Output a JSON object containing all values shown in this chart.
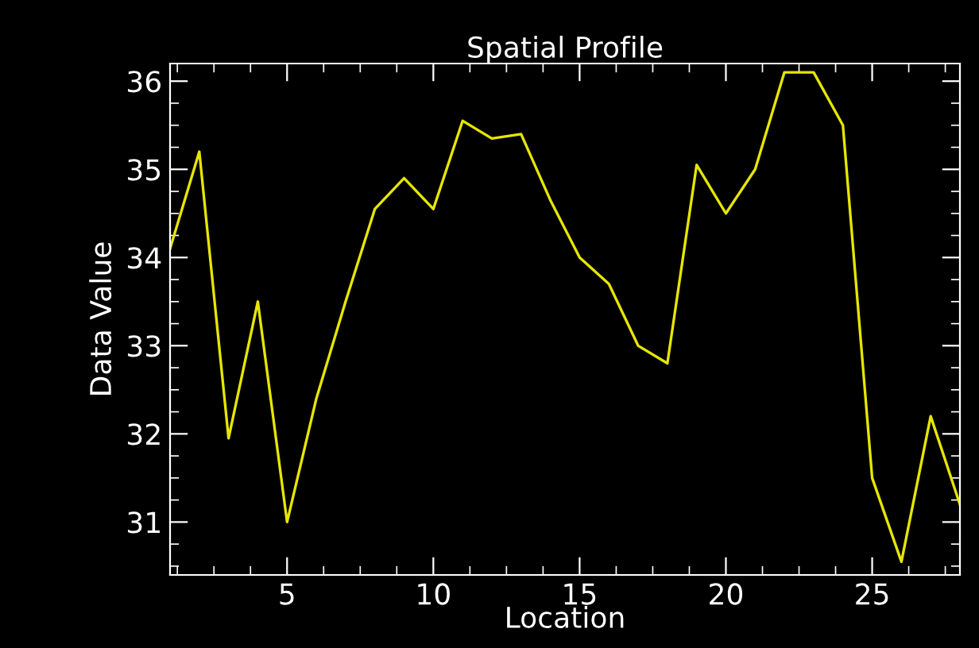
{
  "chart_data": {
    "type": "line",
    "title": "Spatial Profile",
    "xlabel": "Location",
    "ylabel": "Data Value",
    "x": [
      1,
      2,
      3,
      4,
      5,
      6,
      7,
      8,
      9,
      10,
      11,
      12,
      13,
      14,
      15,
      16,
      17,
      18,
      19,
      20,
      21,
      22,
      23,
      24,
      25,
      26,
      27,
      28
    ],
    "series": [
      {
        "color": "#e6e600",
        "values": [
          34.1,
          35.2,
          31.95,
          33.5,
          31.0,
          32.4,
          33.5,
          34.55,
          34.9,
          34.55,
          35.55,
          35.35,
          35.4,
          34.65,
          34.0,
          33.7,
          33.0,
          32.8,
          35.05,
          34.5,
          35.0,
          36.1,
          36.1,
          35.5,
          31.5,
          30.55,
          32.2,
          31.2
        ]
      }
    ],
    "xlim": [
      1,
      28
    ],
    "xticks": [
      5,
      10,
      15,
      20,
      25
    ],
    "ylim": [
      30.4,
      36.2
    ],
    "yticks": [
      31,
      32,
      33,
      34,
      35,
      36
    ],
    "grid": false,
    "legend": false,
    "marker": "none",
    "line_style": "solid"
  }
}
